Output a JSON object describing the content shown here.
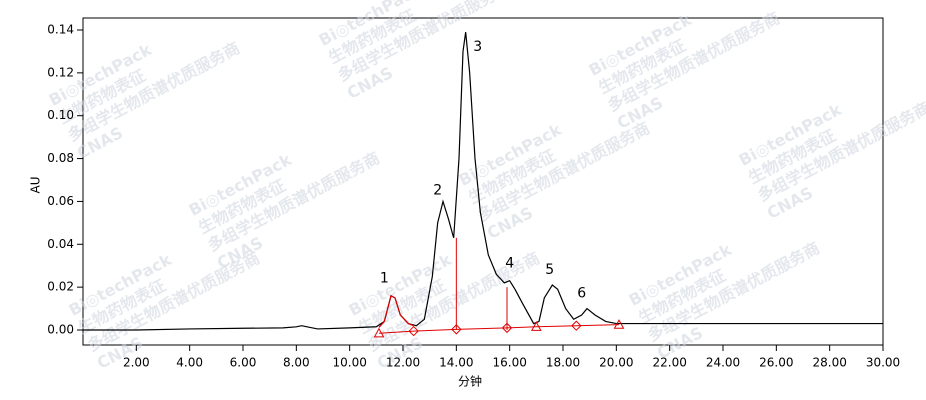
{
  "chart_data": {
    "type": "line",
    "xlabel": "分钟",
    "ylabel": "AU",
    "xlim": [
      0,
      30
    ],
    "ylim": [
      -0.007,
      0.1456
    ],
    "xticks": [
      {
        "value": 2,
        "label": "2.00"
      },
      {
        "value": 4,
        "label": "4.00"
      },
      {
        "value": 6,
        "label": "6.00"
      },
      {
        "value": 8,
        "label": "8.00"
      },
      {
        "value": 10,
        "label": "10.00"
      },
      {
        "value": 12,
        "label": "12.00"
      },
      {
        "value": 14,
        "label": "14.00"
      },
      {
        "value": 16,
        "label": "16.00"
      },
      {
        "value": 18,
        "label": "18.00"
      },
      {
        "value": 20,
        "label": "20.00"
      },
      {
        "value": 22,
        "label": "22.00"
      },
      {
        "value": 24,
        "label": "24.00"
      },
      {
        "value": 26,
        "label": "26.00"
      },
      {
        "value": 28,
        "label": "28.00"
      },
      {
        "value": 30,
        "label": "30.00"
      }
    ],
    "yticks": [
      {
        "value": 0,
        "label": "0.00"
      },
      {
        "value": 0.02,
        "label": "0.02"
      },
      {
        "value": 0.04,
        "label": "0.04"
      },
      {
        "value": 0.06,
        "label": "0.06"
      },
      {
        "value": 0.08,
        "label": "0.08"
      },
      {
        "value": 0.1,
        "label": "0.10"
      },
      {
        "value": 0.12,
        "label": "0.12"
      },
      {
        "value": 0.14,
        "label": "0.14"
      }
    ],
    "series": [
      {
        "color": "#000000",
        "x": [
          0,
          2,
          4,
          6,
          7.5,
          8.0,
          8.2,
          8.4,
          8.8,
          10,
          11,
          11.3,
          11.55,
          11.7,
          11.9,
          12.2,
          12.5,
          12.8,
          13.1,
          13.3,
          13.5,
          13.7,
          13.9,
          14.1,
          14.25,
          14.35,
          14.5,
          14.7,
          14.9,
          15.2,
          15.5,
          15.8,
          16.0,
          16.2,
          16.5,
          16.9,
          17.1,
          17.3,
          17.6,
          17.8,
          18.1,
          18.4,
          18.7,
          18.9,
          19.2,
          19.6,
          20.0,
          22,
          24,
          26,
          28,
          30
        ],
        "values": [
          0.0,
          0.0,
          0.0005,
          0.0008,
          0.001,
          0.0015,
          0.002,
          0.0015,
          0.0005,
          0.001,
          0.0015,
          0.004,
          0.016,
          0.015,
          0.007,
          0.003,
          0.002,
          0.005,
          0.025,
          0.05,
          0.06,
          0.052,
          0.043,
          0.08,
          0.13,
          0.139,
          0.12,
          0.08,
          0.055,
          0.035,
          0.026,
          0.022,
          0.023,
          0.019,
          0.012,
          0.003,
          0.004,
          0.015,
          0.021,
          0.019,
          0.01,
          0.005,
          0.007,
          0.01,
          0.007,
          0.004,
          0.003,
          0.003,
          0.003,
          0.003,
          0.003,
          0.003
        ]
      },
      {
        "color": "#e00000",
        "x": [
          11.1,
          11.3,
          11.55,
          11.7,
          11.9,
          12.2,
          12.4
        ],
        "values": [
          0.0012,
          0.004,
          0.016,
          0.015,
          0.007,
          0.003,
          0.002
        ]
      }
    ],
    "integration": {
      "color": "#e00000",
      "x": [
        11.1,
        12.4,
        14.0,
        15.9,
        17.0,
        18.5,
        20.1
      ],
      "y": [
        -0.0015,
        -0.0005,
        0.0003,
        0.001,
        0.0015,
        0.002,
        0.0025
      ],
      "markers": [
        "triangle",
        "diamond",
        "diamond",
        "diamond",
        "triangle",
        "diamond",
        "triangle"
      ]
    },
    "drop_lines": {
      "x": [
        14.0,
        15.9
      ],
      "y": [
        0.043,
        0.02
      ]
    },
    "annotations": [
      {
        "text": "1",
        "x": 11.3,
        "y": 0.024
      },
      {
        "text": "2",
        "x": 13.3,
        "y": 0.065
      },
      {
        "text": "3",
        "x": 14.8,
        "y": 0.132
      },
      {
        "text": "4",
        "x": 16.0,
        "y": 0.031
      },
      {
        "text": "5",
        "x": 17.5,
        "y": 0.028
      },
      {
        "text": "6",
        "x": 18.7,
        "y": 0.017
      }
    ],
    "watermarks": [
      "Bi◎techPack",
      "生物药物表征",
      "多组学生物质谱优质服务商",
      "CNAS"
    ]
  }
}
